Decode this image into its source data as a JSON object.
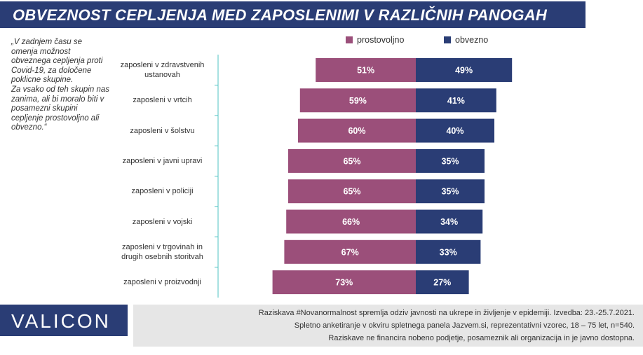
{
  "title": "OBVEZNOST CEPLJENJA MED ZAPOSLENIMI V RAZLIČNIH PANOGAH",
  "question": {
    "lines": [
      "„V zadnjem času se omenja možnost obveznega cepljenja proti Covid-19, za določene poklicne skupine.",
      "Za vsako od teh skupin nas zanima, ali bi moralo biti v posamezni skupini cepljenje prostovoljno ali obvezno.“"
    ]
  },
  "colors": {
    "prostovoljno": "#9b4f7a",
    "obvezno": "#2a3d75",
    "title_bg": "#2a3d75",
    "footer_bg": "#e6e6e6",
    "guide": "#4fc3c3"
  },
  "chart_data": {
    "type": "bar",
    "orientation": "horizontal-diverging",
    "categories": [
      [
        "zaposleni v zdravstvenih",
        "ustanovah"
      ],
      [
        "zaposleni v vrtcih"
      ],
      [
        "zaposleni v šolstvu"
      ],
      [
        "zaposleni v javni upravi"
      ],
      [
        "zaposleni v policiji"
      ],
      [
        "zaposleni v vojski"
      ],
      [
        "zaposleni v trgovinah in",
        "drugih osebnih storitvah"
      ],
      [
        "zaposleni v proizvodnji"
      ]
    ],
    "series": [
      {
        "name": "prostovoljno",
        "values": [
          51,
          59,
          60,
          65,
          65,
          66,
          67,
          73
        ],
        "labels": [
          "51%",
          "59%",
          "60%",
          "65%",
          "65%",
          "66%",
          "67%",
          "73%"
        ]
      },
      {
        "name": "obvezno",
        "values": [
          49,
          41,
          40,
          35,
          35,
          34,
          33,
          27
        ],
        "labels": [
          "49%",
          "41%",
          "40%",
          "35%",
          "35%",
          "34%",
          "33%",
          "27%"
        ]
      }
    ],
    "legend_position": "top",
    "unit": "%"
  },
  "footer": {
    "logo": "VALICON",
    "notes": [
      "Raziskava #Novanormalnost spremlja odziv javnosti na ukrepe in življenje v epidemiji. Izvedba: 23.-25.7.2021.",
      "Spletno anketiranje v okviru spletnega panela Jazvem.si, reprezentativni vzorec,  18 – 75 let, n=540.",
      "Raziskave ne financira nobeno podjetje, posameznik ali organizacija in je javno dostopna."
    ]
  }
}
